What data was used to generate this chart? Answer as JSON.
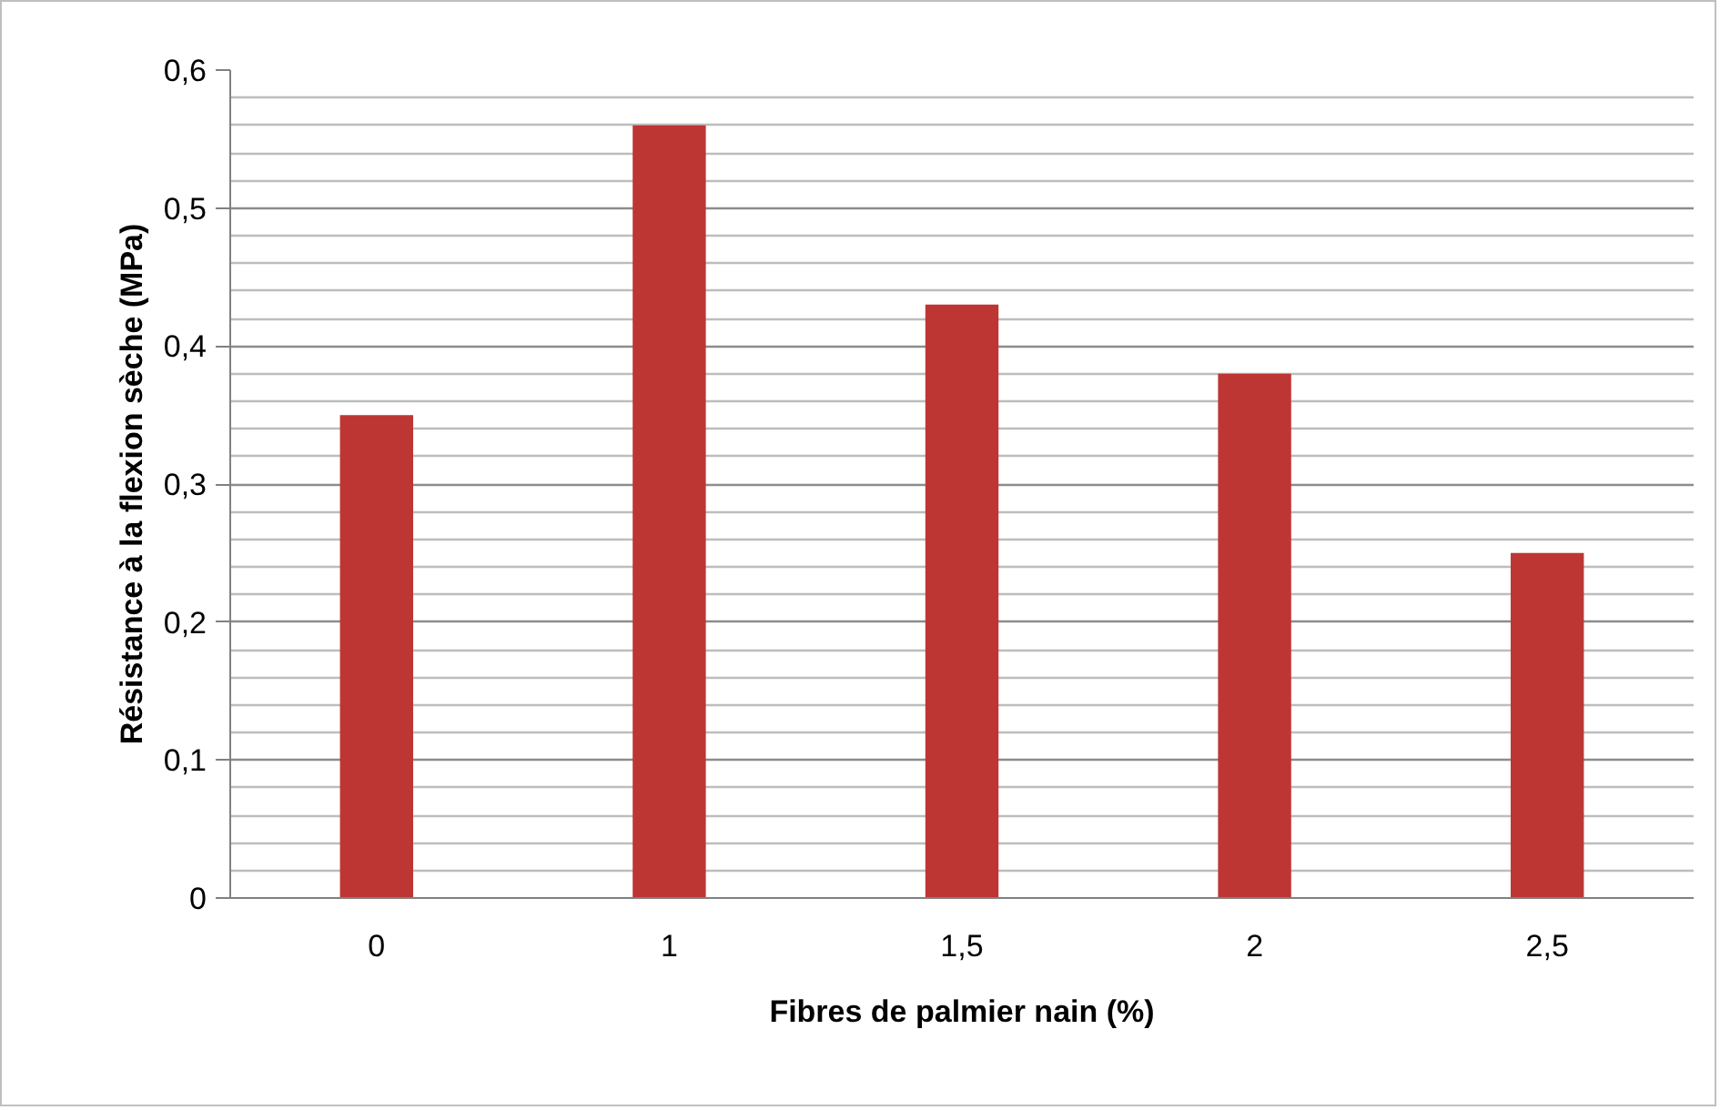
{
  "chart_data": {
    "type": "bar",
    "xlabel": "Fibres de palmier nain (%)",
    "ylabel": "Résistance à la flexion sèche (MPa)",
    "categories": [
      "0",
      "1",
      "1,5",
      "2",
      "2,5"
    ],
    "values": [
      0.35,
      0.56,
      0.43,
      0.38,
      0.25
    ],
    "color": "#bd3634",
    "ylim": [
      0,
      0.6
    ],
    "yticks": [
      {
        "value": 0,
        "label": "0"
      },
      {
        "value": 0.02,
        "label": null
      },
      {
        "value": 0.04,
        "label": null
      },
      {
        "value": 0.06,
        "label": null
      },
      {
        "value": 0.08,
        "label": null
      },
      {
        "value": 0.1,
        "label": "0,1"
      },
      {
        "value": 0.12,
        "label": null
      },
      {
        "value": 0.14,
        "label": null
      },
      {
        "value": 0.16,
        "label": null
      },
      {
        "value": 0.18,
        "label": null
      },
      {
        "value": 0.2,
        "label": "0,2"
      },
      {
        "value": 0.22,
        "label": null
      },
      {
        "value": 0.24,
        "label": null
      },
      {
        "value": 0.26,
        "label": null
      },
      {
        "value": 0.28,
        "label": null
      },
      {
        "value": 0.3,
        "label": "0,3"
      },
      {
        "value": 0.32,
        "label": null
      },
      {
        "value": 0.34,
        "label": null
      },
      {
        "value": 0.36,
        "label": null
      },
      {
        "value": 0.38,
        "label": null
      },
      {
        "value": 0.4,
        "label": "0,4"
      },
      {
        "value": 0.42,
        "label": null
      },
      {
        "value": 0.44,
        "label": null
      },
      {
        "value": 0.46,
        "label": null
      },
      {
        "value": 0.48,
        "label": null
      },
      {
        "value": 0.5,
        "label": "0,5"
      },
      {
        "value": 0.52,
        "label": null
      },
      {
        "value": 0.54,
        "label": null
      },
      {
        "value": 0.56,
        "label": null
      },
      {
        "value": 0.58,
        "label": null
      },
      {
        "value": 0.6,
        "label": "0,6"
      }
    ],
    "grid": "y"
  }
}
